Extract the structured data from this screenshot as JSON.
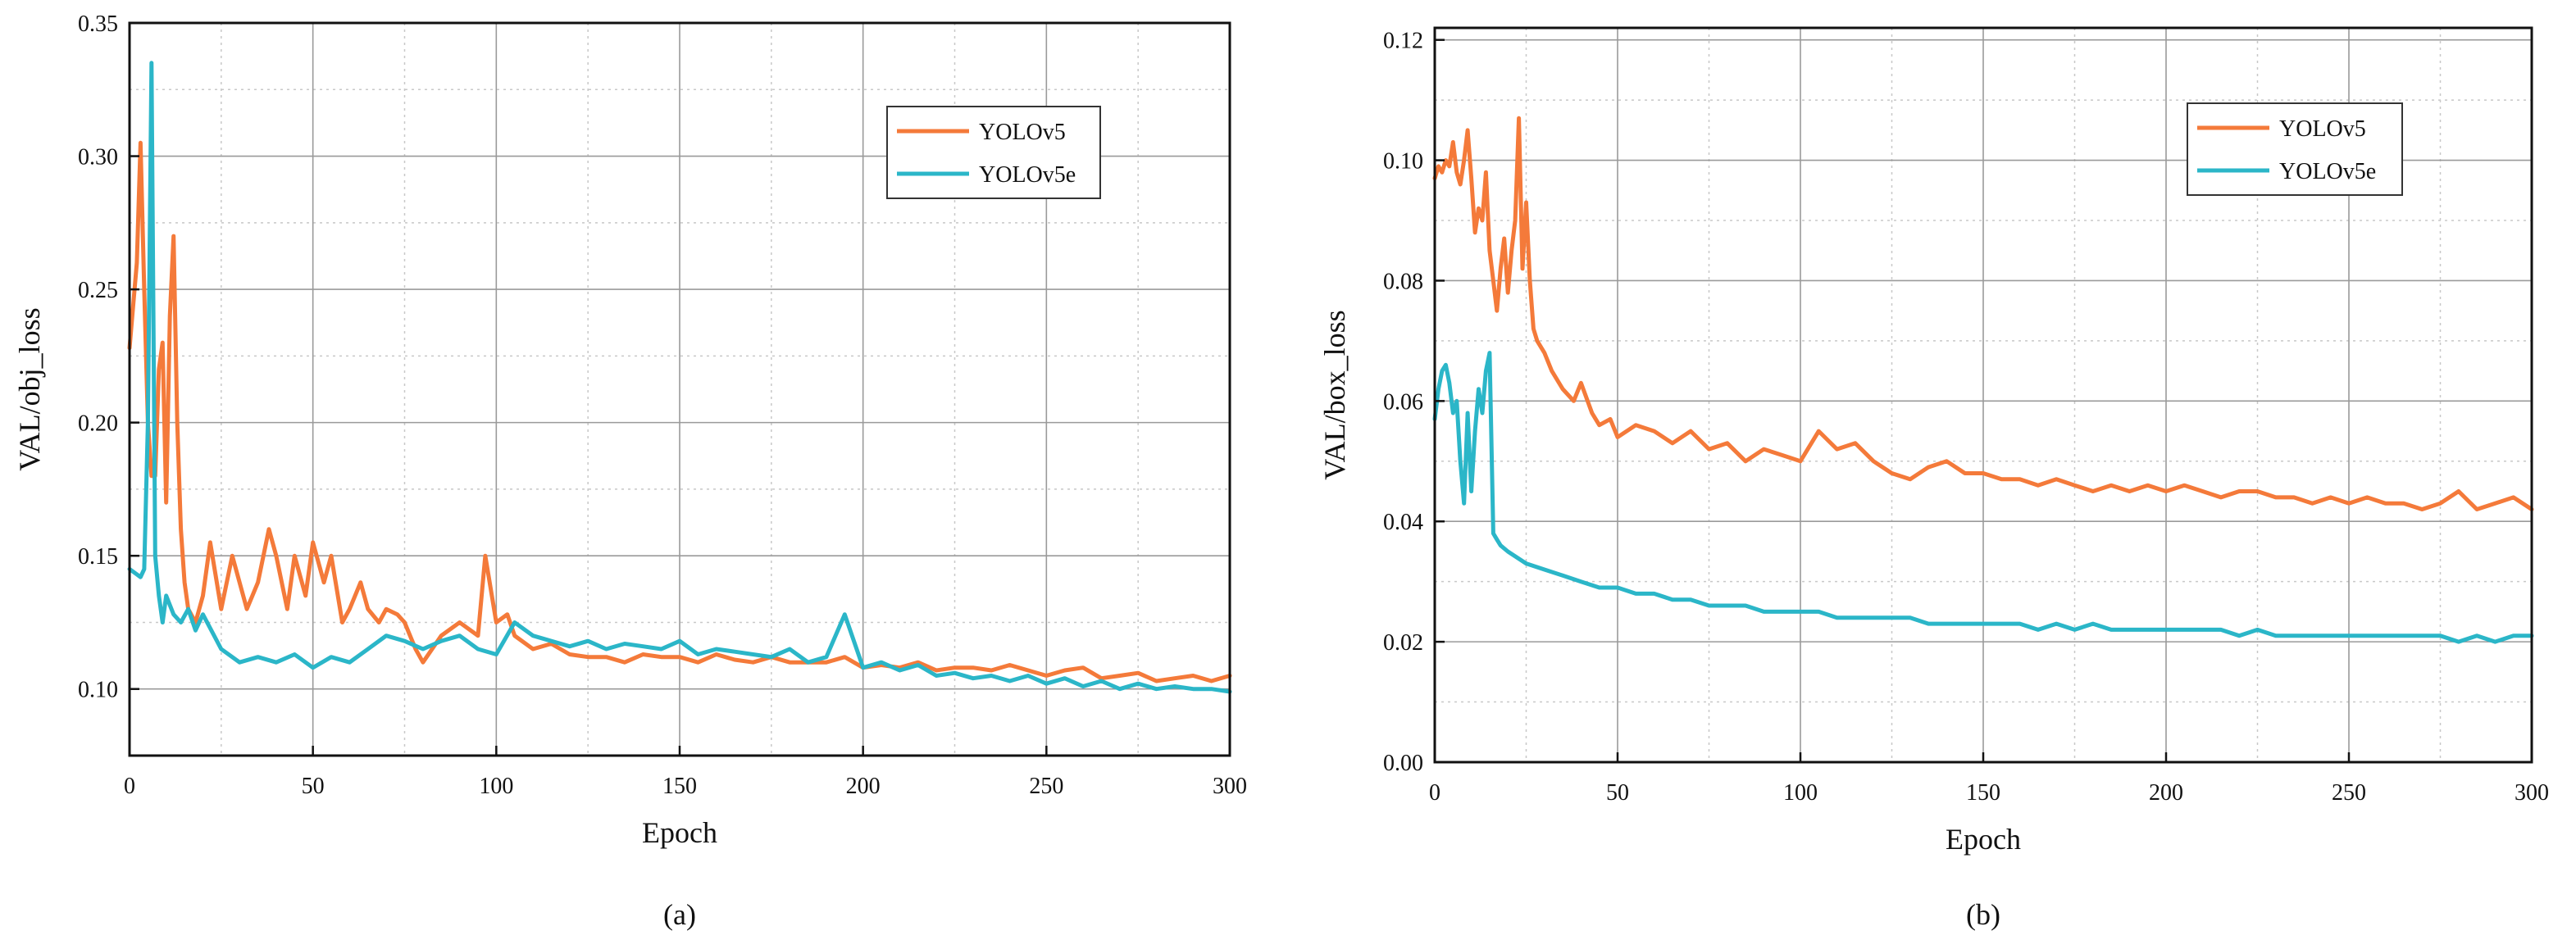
{
  "chart_data": [
    {
      "type": "line",
      "caption": "(a)",
      "xlabel": "Epoch",
      "ylabel": "VAL/obj_loss",
      "xlim": [
        0,
        300
      ],
      "ylim": [
        0.075,
        0.35
      ],
      "xticks": [
        0,
        50,
        100,
        150,
        200,
        250,
        300
      ],
      "xtick_labels": [
        "0",
        "50",
        "100",
        "150",
        "200",
        "250",
        "300"
      ],
      "yticks": [
        0.1,
        0.15,
        0.2,
        0.25,
        0.3,
        0.35
      ],
      "ytick_labels": [
        "0.10",
        "0.15",
        "0.20",
        "0.25",
        "0.30",
        "0.35"
      ],
      "grid": true,
      "legend_position": "top-right",
      "series": [
        {
          "name": "YOLOv5",
          "color": "#F47A3A",
          "x": [
            0,
            2,
            3,
            4,
            5,
            6,
            7,
            8,
            9,
            10,
            11,
            12,
            13,
            14,
            15,
            16,
            18,
            20,
            22,
            25,
            28,
            30,
            32,
            35,
            38,
            40,
            43,
            45,
            48,
            50,
            53,
            55,
            58,
            60,
            63,
            65,
            68,
            70,
            73,
            75,
            78,
            80,
            85,
            90,
            95,
            97,
            100,
            103,
            105,
            110,
            115,
            120,
            125,
            130,
            135,
            140,
            145,
            150,
            155,
            160,
            165,
            170,
            175,
            180,
            185,
            190,
            195,
            200,
            205,
            210,
            215,
            220,
            225,
            230,
            235,
            240,
            245,
            250,
            255,
            260,
            265,
            270,
            275,
            280,
            285,
            290,
            295,
            300
          ],
          "values": [
            0.228,
            0.26,
            0.305,
            0.25,
            0.2,
            0.18,
            0.18,
            0.22,
            0.23,
            0.17,
            0.24,
            0.27,
            0.2,
            0.16,
            0.14,
            0.13,
            0.125,
            0.135,
            0.155,
            0.13,
            0.15,
            0.14,
            0.13,
            0.14,
            0.16,
            0.15,
            0.13,
            0.15,
            0.135,
            0.155,
            0.14,
            0.15,
            0.125,
            0.13,
            0.14,
            0.13,
            0.125,
            0.13,
            0.128,
            0.125,
            0.115,
            0.11,
            0.12,
            0.125,
            0.12,
            0.15,
            0.125,
            0.128,
            0.12,
            0.115,
            0.117,
            0.113,
            0.112,
            0.112,
            0.11,
            0.113,
            0.112,
            0.112,
            0.11,
            0.113,
            0.111,
            0.11,
            0.112,
            0.11,
            0.11,
            0.11,
            0.112,
            0.108,
            0.109,
            0.108,
            0.11,
            0.107,
            0.108,
            0.108,
            0.107,
            0.109,
            0.107,
            0.105,
            0.107,
            0.108,
            0.104,
            0.105,
            0.106,
            0.103,
            0.104,
            0.105,
            0.103,
            0.105
          ]
        },
        {
          "name": "YOLOv5e",
          "color": "#2BB6C8",
          "x": [
            0,
            2,
            3,
            4,
            5,
            6,
            7,
            8,
            9,
            10,
            12,
            14,
            16,
            18,
            20,
            25,
            30,
            35,
            40,
            45,
            50,
            55,
            60,
            65,
            70,
            75,
            80,
            85,
            90,
            95,
            100,
            105,
            110,
            115,
            120,
            125,
            130,
            135,
            140,
            145,
            150,
            155,
            160,
            165,
            170,
            175,
            180,
            185,
            190,
            195,
            200,
            205,
            210,
            215,
            220,
            225,
            230,
            235,
            240,
            245,
            250,
            255,
            260,
            265,
            270,
            275,
            280,
            285,
            290,
            295,
            300
          ],
          "values": [
            0.145,
            0.143,
            0.142,
            0.145,
            0.2,
            0.335,
            0.15,
            0.135,
            0.125,
            0.135,
            0.128,
            0.125,
            0.13,
            0.122,
            0.128,
            0.115,
            0.11,
            0.112,
            0.11,
            0.113,
            0.108,
            0.112,
            0.11,
            0.115,
            0.12,
            0.118,
            0.115,
            0.118,
            0.12,
            0.115,
            0.113,
            0.125,
            0.12,
            0.118,
            0.116,
            0.118,
            0.115,
            0.117,
            0.116,
            0.115,
            0.118,
            0.113,
            0.115,
            0.114,
            0.113,
            0.112,
            0.115,
            0.11,
            0.112,
            0.128,
            0.108,
            0.11,
            0.107,
            0.109,
            0.105,
            0.106,
            0.104,
            0.105,
            0.103,
            0.105,
            0.102,
            0.104,
            0.101,
            0.103,
            0.1,
            0.102,
            0.1,
            0.101,
            0.1,
            0.1,
            0.099
          ]
        }
      ]
    },
    {
      "type": "line",
      "caption": "(b)",
      "xlabel": "Epoch",
      "ylabel": "VAL/box_loss",
      "xlim": [
        0,
        300
      ],
      "ylim": [
        0,
        0.122
      ],
      "xticks": [
        0,
        50,
        100,
        150,
        200,
        250,
        300
      ],
      "xtick_labels": [
        "0",
        "50",
        "100",
        "150",
        "200",
        "250",
        "300"
      ],
      "yticks": [
        0.0,
        0.02,
        0.04,
        0.06,
        0.08,
        0.1,
        0.12
      ],
      "ytick_labels": [
        "0.00",
        "0.02",
        "0.04",
        "0.06",
        "0.08",
        "0.10",
        "0.12"
      ],
      "grid": true,
      "legend_position": "top-right",
      "series": [
        {
          "name": "YOLOv5",
          "color": "#F47A3A",
          "x": [
            0,
            1,
            2,
            3,
            4,
            5,
            6,
            7,
            8,
            9,
            10,
            11,
            12,
            13,
            14,
            15,
            16,
            17,
            18,
            19,
            20,
            21,
            22,
            23,
            24,
            25,
            26,
            27,
            28,
            30,
            32,
            35,
            38,
            40,
            43,
            45,
            48,
            50,
            55,
            60,
            65,
            70,
            75,
            80,
            85,
            90,
            95,
            100,
            105,
            110,
            115,
            120,
            125,
            130,
            135,
            140,
            145,
            150,
            155,
            160,
            165,
            170,
            175,
            180,
            185,
            190,
            195,
            200,
            205,
            210,
            215,
            220,
            225,
            230,
            235,
            240,
            245,
            250,
            255,
            260,
            265,
            270,
            275,
            280,
            285,
            290,
            295,
            300
          ],
          "values": [
            0.097,
            0.099,
            0.098,
            0.1,
            0.099,
            0.103,
            0.098,
            0.096,
            0.1,
            0.105,
            0.097,
            0.088,
            0.092,
            0.09,
            0.098,
            0.085,
            0.08,
            0.075,
            0.082,
            0.087,
            0.078,
            0.085,
            0.09,
            0.107,
            0.082,
            0.093,
            0.08,
            0.072,
            0.07,
            0.068,
            0.065,
            0.062,
            0.06,
            0.063,
            0.058,
            0.056,
            0.057,
            0.054,
            0.056,
            0.055,
            0.053,
            0.055,
            0.052,
            0.053,
            0.05,
            0.052,
            0.051,
            0.05,
            0.055,
            0.052,
            0.053,
            0.05,
            0.048,
            0.047,
            0.049,
            0.05,
            0.048,
            0.048,
            0.047,
            0.047,
            0.046,
            0.047,
            0.046,
            0.045,
            0.046,
            0.045,
            0.046,
            0.045,
            0.046,
            0.045,
            0.044,
            0.045,
            0.045,
            0.044,
            0.044,
            0.043,
            0.044,
            0.043,
            0.044,
            0.043,
            0.043,
            0.042,
            0.043,
            0.045,
            0.042,
            0.043,
            0.044,
            0.042
          ]
        },
        {
          "name": "YOLOv5e",
          "color": "#2BB6C8",
          "x": [
            0,
            1,
            2,
            3,
            4,
            5,
            6,
            7,
            8,
            9,
            10,
            11,
            12,
            13,
            14,
            15,
            16,
            17,
            18,
            20,
            25,
            30,
            35,
            40,
            45,
            50,
            55,
            60,
            65,
            70,
            75,
            80,
            85,
            90,
            95,
            100,
            105,
            110,
            115,
            120,
            125,
            130,
            135,
            140,
            145,
            150,
            155,
            160,
            165,
            170,
            175,
            180,
            185,
            190,
            195,
            200,
            205,
            210,
            215,
            220,
            225,
            230,
            235,
            240,
            245,
            250,
            255,
            260,
            265,
            270,
            275,
            280,
            285,
            290,
            295,
            300
          ],
          "values": [
            0.057,
            0.062,
            0.065,
            0.066,
            0.063,
            0.058,
            0.06,
            0.05,
            0.043,
            0.058,
            0.045,
            0.055,
            0.062,
            0.058,
            0.065,
            0.068,
            0.038,
            0.037,
            0.036,
            0.035,
            0.033,
            0.032,
            0.031,
            0.03,
            0.029,
            0.029,
            0.028,
            0.028,
            0.027,
            0.027,
            0.026,
            0.026,
            0.026,
            0.025,
            0.025,
            0.025,
            0.025,
            0.024,
            0.024,
            0.024,
            0.024,
            0.024,
            0.023,
            0.023,
            0.023,
            0.023,
            0.023,
            0.023,
            0.022,
            0.023,
            0.022,
            0.023,
            0.022,
            0.022,
            0.022,
            0.022,
            0.022,
            0.022,
            0.022,
            0.021,
            0.022,
            0.021,
            0.021,
            0.021,
            0.021,
            0.021,
            0.021,
            0.021,
            0.021,
            0.021,
            0.021,
            0.02,
            0.021,
            0.02,
            0.021,
            0.021
          ]
        }
      ]
    }
  ]
}
